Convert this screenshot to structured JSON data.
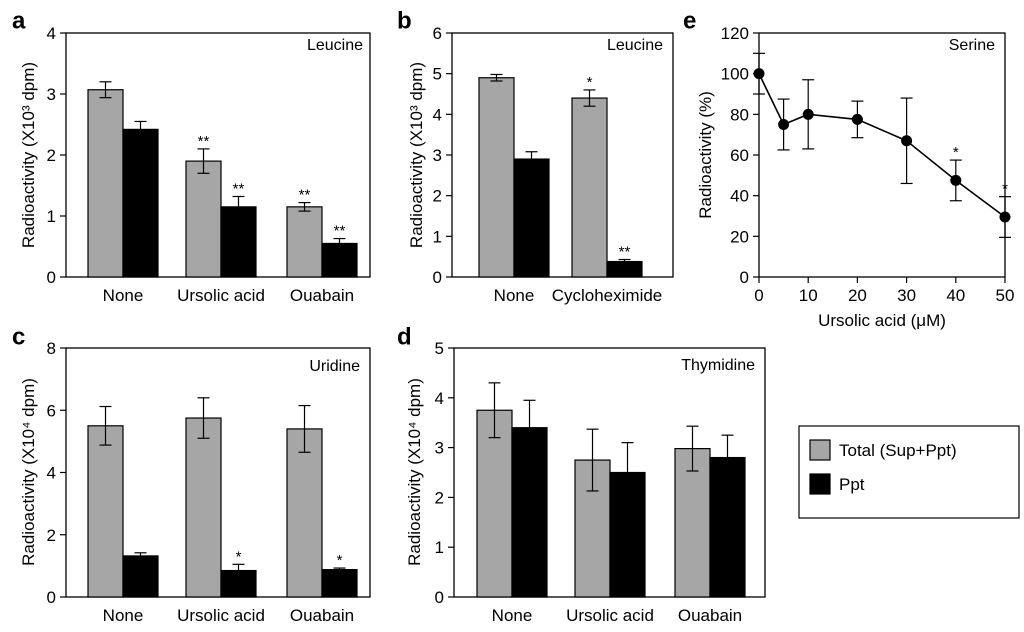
{
  "chart_data": [
    {
      "panel": "a",
      "type": "bar",
      "title": "Leucine",
      "ylabel": "Radioactivity (X10³ dpm)",
      "ylim": [
        0,
        4
      ],
      "yticks": [
        "0",
        "1",
        "2",
        "3",
        "4"
      ],
      "categories": [
        "None",
        "Ursolic acid",
        "Ouabain"
      ],
      "series": [
        {
          "name": "Total (Sup+Ppt)",
          "values": [
            3.07,
            1.9,
            1.15
          ],
          "errors": [
            0.13,
            0.2,
            0.07
          ],
          "annotations": [
            "",
            "**",
            "**"
          ]
        },
        {
          "name": "Ppt",
          "values": [
            2.42,
            1.15,
            0.55
          ],
          "errors": [
            0.13,
            0.17,
            0.08
          ],
          "annotations": [
            "",
            "**",
            "**"
          ]
        }
      ]
    },
    {
      "panel": "b",
      "type": "bar",
      "title": "Leucine",
      "ylabel": "Radioactivity (X10³ dpm)",
      "ylim": [
        0,
        6
      ],
      "yticks": [
        "0",
        "1",
        "2",
        "3",
        "4",
        "5",
        "6"
      ],
      "categories": [
        "None",
        "Cycloheximide"
      ],
      "series": [
        {
          "name": "Total (Sup+Ppt)",
          "values": [
            4.9,
            4.4
          ],
          "errors": [
            0.08,
            0.2
          ],
          "annotations": [
            "",
            "*"
          ]
        },
        {
          "name": "Ppt",
          "values": [
            2.9,
            0.38
          ],
          "errors": [
            0.18,
            0.05
          ],
          "annotations": [
            "",
            "**"
          ]
        }
      ]
    },
    {
      "panel": "c",
      "type": "bar",
      "title": "Uridine",
      "ylabel": "Radioactivity (X10⁴ dpm)",
      "ylim": [
        0,
        8
      ],
      "yticks": [
        "0",
        "2",
        "4",
        "6",
        "8"
      ],
      "categories": [
        "None",
        "Ursolic acid",
        "Ouabain"
      ],
      "series": [
        {
          "name": "Total (Sup+Ppt)",
          "values": [
            5.5,
            5.75,
            5.4
          ],
          "errors": [
            0.62,
            0.65,
            0.75
          ],
          "annotations": [
            "",
            "",
            ""
          ]
        },
        {
          "name": "Ppt",
          "values": [
            1.32,
            0.85,
            0.88
          ],
          "errors": [
            0.1,
            0.2,
            0.05
          ],
          "annotations": [
            "",
            "*",
            "*"
          ]
        }
      ]
    },
    {
      "panel": "d",
      "type": "bar",
      "title": "Thymidine",
      "ylabel": "Radioactivity (X10⁴ dpm)",
      "ylim": [
        0,
        5
      ],
      "yticks": [
        "0",
        "1",
        "2",
        "3",
        "4",
        "5"
      ],
      "categories": [
        "None",
        "Ursolic acid",
        "Ouabain"
      ],
      "series": [
        {
          "name": "Total (Sup+Ppt)",
          "values": [
            3.75,
            2.75,
            2.98
          ],
          "errors": [
            0.55,
            0.62,
            0.45
          ],
          "annotations": [
            "",
            "",
            ""
          ]
        },
        {
          "name": "Ppt",
          "values": [
            3.4,
            2.5,
            2.8
          ],
          "errors": [
            0.55,
            0.6,
            0.45
          ],
          "annotations": [
            "",
            "",
            ""
          ]
        }
      ]
    },
    {
      "panel": "e",
      "type": "line",
      "title": "Serine",
      "xlabel": "Ursolic acid (μM)",
      "ylabel": "Radioactivity (%)",
      "xlim": [
        0,
        50
      ],
      "ylim": [
        0,
        120
      ],
      "xticks": [
        "0",
        "10",
        "20",
        "30",
        "40",
        "50"
      ],
      "yticks": [
        "0",
        "20",
        "40",
        "60",
        "80",
        "100",
        "120"
      ],
      "series": [
        {
          "name": "Serine",
          "x": [
            0,
            5,
            10,
            20,
            30,
            40,
            50
          ],
          "y": [
            100,
            75,
            80,
            77.5,
            67,
            47.5,
            29.5
          ],
          "errors": [
            10,
            12.5,
            17,
            9,
            21,
            10,
            10
          ],
          "annotations": [
            "",
            "",
            "",
            "",
            "",
            "*",
            "*"
          ]
        }
      ]
    }
  ],
  "legend": {
    "entries": [
      {
        "label": "Total (Sup+Ppt)",
        "color": "#a6a6a6"
      },
      {
        "label": "Ppt",
        "color": "#000000"
      }
    ]
  },
  "colors": {
    "total": "#a6a6a6",
    "ppt": "#000000"
  }
}
